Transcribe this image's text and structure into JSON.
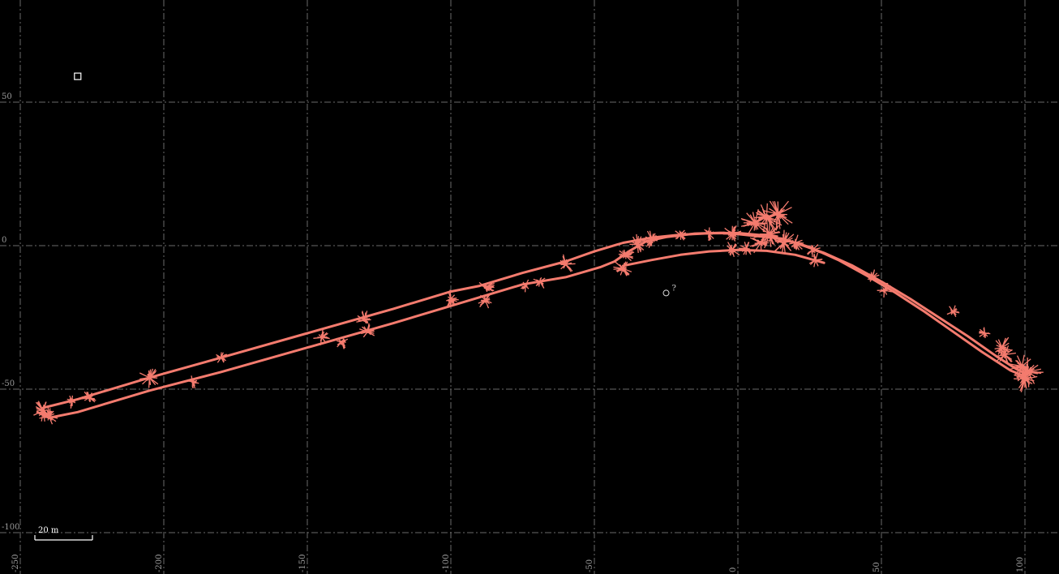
{
  "chart_data": {
    "type": "line",
    "title": "",
    "xlabel": "",
    "ylabel": "",
    "xlim": [
      -253,
      108
    ],
    "ylim": [
      -112,
      85
    ],
    "grid": true,
    "x_ticks": [
      -250,
      -200,
      -150,
      -100,
      -50,
      0,
      50,
      100
    ],
    "y_ticks": [
      50,
      0,
      -50,
      -100
    ],
    "scale_bar": {
      "length": 20,
      "label": "20 m"
    },
    "markers": [
      {
        "name": "square",
        "x": -230,
        "y": 59
      },
      {
        "name": "circle",
        "x": -25,
        "y": -16.5,
        "label": "?"
      }
    ],
    "colors": {
      "track": "#f47b6e",
      "grid": "#6a6a6a",
      "background": "#000000"
    },
    "series": [
      {
        "points": [
          [
            -242,
            -56.5
          ],
          [
            -230,
            -53.5
          ],
          [
            -205,
            -46
          ],
          [
            -180,
            -39
          ],
          [
            -150,
            -30.5
          ],
          [
            -120,
            -22
          ],
          [
            -100,
            -16
          ],
          [
            -90,
            -14
          ],
          [
            -75,
            -9.5
          ],
          [
            -60,
            -5.5
          ],
          [
            -50,
            -2
          ],
          [
            -40,
            1
          ],
          [
            -30,
            2.8
          ],
          [
            -20,
            3.8
          ],
          [
            -10,
            4.3
          ],
          [
            0,
            4.4
          ],
          [
            10,
            3.5
          ],
          [
            20,
            1
          ],
          [
            30,
            -2.5
          ],
          [
            40,
            -7
          ],
          [
            50,
            -12.5
          ],
          [
            60,
            -18.5
          ],
          [
            70,
            -25
          ],
          [
            80,
            -31.5
          ],
          [
            90,
            -38.5
          ],
          [
            97,
            -43
          ],
          [
            100,
            -44.5
          ]
        ]
      },
      {
        "points": [
          [
            100,
            -45.5
          ],
          [
            95,
            -43.5
          ],
          [
            85,
            -37
          ],
          [
            75,
            -30
          ],
          [
            65,
            -23
          ],
          [
            55,
            -16.5
          ],
          [
            45,
            -10.5
          ],
          [
            35,
            -5
          ],
          [
            25,
            -0.5
          ],
          [
            15,
            2.5
          ],
          [
            5,
            3.5
          ],
          [
            0,
            4
          ],
          [
            -5,
            4.5
          ],
          [
            -15,
            4.2
          ],
          [
            -25,
            3
          ],
          [
            -32,
            1.5
          ],
          [
            -38,
            -2
          ],
          [
            -43,
            -5.5
          ],
          [
            -48,
            -7.5
          ],
          [
            -60,
            -11
          ],
          [
            -75,
            -13.5
          ],
          [
            -90,
            -18
          ],
          [
            -100,
            -21
          ],
          [
            -120,
            -27
          ],
          [
            -150,
            -35.5
          ],
          [
            -180,
            -44
          ],
          [
            -205,
            -50.5
          ],
          [
            -230,
            -58
          ],
          [
            -240,
            -60
          ],
          [
            -244,
            -58
          ]
        ]
      },
      {
        "points": [
          [
            -40,
            -7
          ],
          [
            -30,
            -5
          ],
          [
            -20,
            -3.2
          ],
          [
            -10,
            -2
          ],
          [
            0,
            -1.5
          ],
          [
            10,
            -1.8
          ],
          [
            20,
            -3.2
          ],
          [
            30,
            -6
          ]
        ]
      }
    ],
    "noise_clusters": [
      {
        "x": 10,
        "y": 10,
        "size": 1.6
      },
      {
        "x": 14,
        "y": 11,
        "size": 1.5
      },
      {
        "x": 6,
        "y": 8,
        "size": 1.3
      },
      {
        "x": 11,
        "y": 4,
        "size": 1.4
      },
      {
        "x": 16,
        "y": 1,
        "size": 1.2
      },
      {
        "x": 8,
        "y": 1,
        "size": 1.1
      },
      {
        "x": 99,
        "y": -42,
        "size": 1.3
      },
      {
        "x": 101,
        "y": -44,
        "size": 1.4
      },
      {
        "x": 100,
        "y": -46.5,
        "size": 1.2
      },
      {
        "x": 92,
        "y": -35.5,
        "size": 1.1
      },
      {
        "x": 93,
        "y": -38,
        "size": 1.0
      },
      {
        "x": -242,
        "y": -57.5,
        "size": 1.0
      },
      {
        "x": -240,
        "y": -59.5,
        "size": 0.9
      },
      {
        "x": -232,
        "y": -54,
        "size": 0.7
      },
      {
        "x": -226,
        "y": -53,
        "size": 0.7
      },
      {
        "x": -205,
        "y": -46,
        "size": 1.0
      },
      {
        "x": -190,
        "y": -47.5,
        "size": 0.6
      },
      {
        "x": -180,
        "y": -39,
        "size": 0.6
      },
      {
        "x": -145,
        "y": -32,
        "size": 0.8
      },
      {
        "x": -138,
        "y": -33.5,
        "size": 0.7
      },
      {
        "x": -130,
        "y": -26,
        "size": 0.9
      },
      {
        "x": -129,
        "y": -30,
        "size": 0.8
      },
      {
        "x": -100,
        "y": -18.5,
        "size": 0.8
      },
      {
        "x": -88,
        "y": -14.5,
        "size": 0.9
      },
      {
        "x": -88,
        "y": -19,
        "size": 0.8
      },
      {
        "x": -74,
        "y": -14,
        "size": 0.6
      },
      {
        "x": -69,
        "y": -12.5,
        "size": 0.7
      },
      {
        "x": -60,
        "y": -6.5,
        "size": 0.9
      },
      {
        "x": -40,
        "y": -8,
        "size": 1.0
      },
      {
        "x": -39,
        "y": -3.5,
        "size": 0.8
      },
      {
        "x": -35,
        "y": 0.5,
        "size": 0.9
      },
      {
        "x": -30,
        "y": 2,
        "size": 0.9
      },
      {
        "x": -20,
        "y": 3.8,
        "size": 0.6
      },
      {
        "x": -10,
        "y": 4,
        "size": 0.6
      },
      {
        "x": -2,
        "y": 4,
        "size": 0.9
      },
      {
        "x": -2,
        "y": -1.5,
        "size": 0.8
      },
      {
        "x": 3,
        "y": -1,
        "size": 0.7
      },
      {
        "x": 20,
        "y": 1,
        "size": 0.9
      },
      {
        "x": 26,
        "y": -1.5,
        "size": 0.8
      },
      {
        "x": 27,
        "y": -5,
        "size": 0.7
      },
      {
        "x": 47,
        "y": -11,
        "size": 0.7
      },
      {
        "x": 51,
        "y": -15.5,
        "size": 0.7
      },
      {
        "x": 75,
        "y": -23,
        "size": 0.6
      },
      {
        "x": 86,
        "y": -30.5,
        "size": 0.6
      }
    ]
  }
}
